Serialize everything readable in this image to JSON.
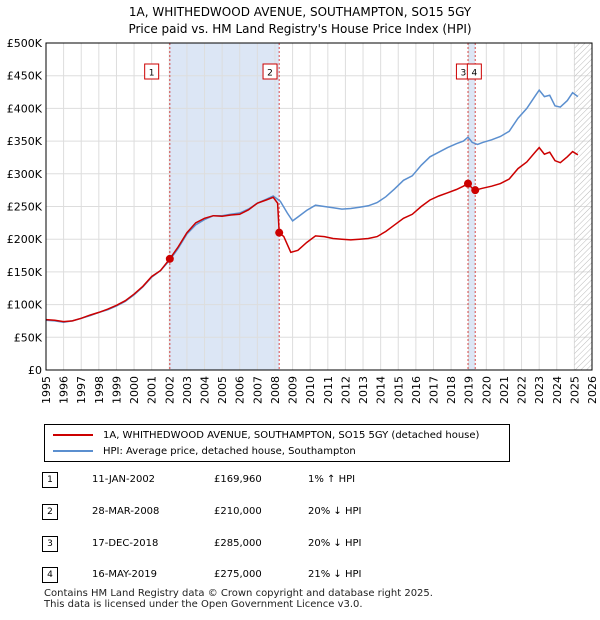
{
  "title": {
    "line1": "1A, WHITHEDWOOD AVENUE, SOUTHAMPTON, SO15 5GY",
    "line2": "Price paid vs. HM Land Registry's House Price Index (HPI)"
  },
  "colors": {
    "red": "#cc0000",
    "blue": "#5b8fcf",
    "shade": "#dce6f5",
    "grid": "#dddddd"
  },
  "chart_data": {
    "type": "line",
    "xlim": [
      1995,
      2026
    ],
    "ylim": [
      0,
      500000
    ],
    "x_ticks": [
      "1995",
      "1996",
      "1997",
      "1998",
      "1999",
      "2000",
      "2001",
      "2002",
      "2003",
      "2004",
      "2005",
      "2006",
      "2007",
      "2008",
      "2009",
      "2010",
      "2011",
      "2012",
      "2013",
      "2014",
      "2015",
      "2016",
      "2017",
      "2018",
      "2019",
      "2020",
      "2021",
      "2022",
      "2023",
      "2024",
      "2025",
      "2026"
    ],
    "y_ticks": [
      {
        "value": 0,
        "label": "£0"
      },
      {
        "value": 50000,
        "label": "£50K"
      },
      {
        "value": 100000,
        "label": "£100K"
      },
      {
        "value": 150000,
        "label": "£150K"
      },
      {
        "value": 200000,
        "label": "£200K"
      },
      {
        "value": 250000,
        "label": "£250K"
      },
      {
        "value": 300000,
        "label": "£300K"
      },
      {
        "value": 350000,
        "label": "£350K"
      },
      {
        "value": 400000,
        "label": "£400K"
      },
      {
        "value": 450000,
        "label": "£450K"
      },
      {
        "value": 500000,
        "label": "£500K"
      }
    ],
    "shaded_periods": [
      [
        2002.03,
        2008.24
      ],
      [
        2018.96,
        2019.37
      ]
    ],
    "future_hatch_from": 2025.0,
    "series": [
      {
        "name": "1A, WHITHEDWOOD AVENUE, SOUTHAMPTON, SO15 5GY (detached house)",
        "color": "#cc0000",
        "points": [
          [
            1995.0,
            77000
          ],
          [
            1995.5,
            76000
          ],
          [
            1996.0,
            74000
          ],
          [
            1996.5,
            75000
          ],
          [
            1997.0,
            79000
          ],
          [
            1997.5,
            84000
          ],
          [
            1998.0,
            88000
          ],
          [
            1998.5,
            93000
          ],
          [
            1999.0,
            99000
          ],
          [
            1999.5,
            106000
          ],
          [
            2000.0,
            116000
          ],
          [
            2000.5,
            128000
          ],
          [
            2001.0,
            143000
          ],
          [
            2001.5,
            152000
          ],
          [
            2002.03,
            169960
          ],
          [
            2002.5,
            188000
          ],
          [
            2003.0,
            210000
          ],
          [
            2003.5,
            225000
          ],
          [
            2004.0,
            232000
          ],
          [
            2004.5,
            236000
          ],
          [
            2005.0,
            235000
          ],
          [
            2005.5,
            237000
          ],
          [
            2006.0,
            238000
          ],
          [
            2006.5,
            245000
          ],
          [
            2007.0,
            255000
          ],
          [
            2007.5,
            260000
          ],
          [
            2007.9,
            264000
          ],
          [
            2008.15,
            255000
          ],
          [
            2008.24,
            210000
          ],
          [
            2008.5,
            204000
          ],
          [
            2008.9,
            180000
          ],
          [
            2009.3,
            183000
          ],
          [
            2009.8,
            195000
          ],
          [
            2010.3,
            205000
          ],
          [
            2010.8,
            204000
          ],
          [
            2011.3,
            201000
          ],
          [
            2011.8,
            200000
          ],
          [
            2012.3,
            199000
          ],
          [
            2012.8,
            200000
          ],
          [
            2013.3,
            201000
          ],
          [
            2013.8,
            204000
          ],
          [
            2014.3,
            212000
          ],
          [
            2014.8,
            222000
          ],
          [
            2015.3,
            232000
          ],
          [
            2015.8,
            238000
          ],
          [
            2016.3,
            250000
          ],
          [
            2016.8,
            260000
          ],
          [
            2017.3,
            266000
          ],
          [
            2017.8,
            271000
          ],
          [
            2018.3,
            276000
          ],
          [
            2018.7,
            281000
          ],
          [
            2018.96,
            285000
          ],
          [
            2019.2,
            278000
          ],
          [
            2019.37,
            275000
          ],
          [
            2019.8,
            278000
          ],
          [
            2020.3,
            281000
          ],
          [
            2020.8,
            285000
          ],
          [
            2021.3,
            292000
          ],
          [
            2021.8,
            308000
          ],
          [
            2022.3,
            318000
          ],
          [
            2022.8,
            334000
          ],
          [
            2023.0,
            340000
          ],
          [
            2023.3,
            330000
          ],
          [
            2023.6,
            333000
          ],
          [
            2023.9,
            320000
          ],
          [
            2024.2,
            317000
          ],
          [
            2024.6,
            326000
          ],
          [
            2024.9,
            334000
          ],
          [
            2025.2,
            329000
          ]
        ]
      },
      {
        "name": "HPI: Average price, detached house, Southampton",
        "color": "#5b8fcf",
        "points": [
          [
            1995.0,
            76000
          ],
          [
            1995.5,
            75000
          ],
          [
            1996.0,
            73000
          ],
          [
            1996.5,
            75000
          ],
          [
            1997.0,
            79000
          ],
          [
            1997.5,
            83000
          ],
          [
            1998.0,
            88000
          ],
          [
            1998.5,
            92000
          ],
          [
            1999.0,
            98000
          ],
          [
            1999.5,
            105000
          ],
          [
            2000.0,
            115000
          ],
          [
            2000.5,
            127000
          ],
          [
            2001.0,
            142000
          ],
          [
            2001.5,
            152000
          ],
          [
            2002.03,
            168000
          ],
          [
            2002.5,
            186000
          ],
          [
            2003.0,
            208000
          ],
          [
            2003.5,
            222000
          ],
          [
            2004.0,
            230000
          ],
          [
            2004.5,
            236000
          ],
          [
            2005.0,
            236000
          ],
          [
            2005.5,
            238000
          ],
          [
            2006.0,
            240000
          ],
          [
            2006.5,
            246000
          ],
          [
            2007.0,
            255000
          ],
          [
            2007.5,
            261000
          ],
          [
            2007.9,
            266000
          ],
          [
            2008.3,
            258000
          ],
          [
            2008.7,
            240000
          ],
          [
            2009.0,
            228000
          ],
          [
            2009.3,
            234000
          ],
          [
            2009.8,
            244000
          ],
          [
            2010.3,
            252000
          ],
          [
            2010.8,
            250000
          ],
          [
            2011.3,
            248000
          ],
          [
            2011.8,
            246000
          ],
          [
            2012.3,
            247000
          ],
          [
            2012.8,
            249000
          ],
          [
            2013.3,
            251000
          ],
          [
            2013.8,
            256000
          ],
          [
            2014.3,
            265000
          ],
          [
            2014.8,
            277000
          ],
          [
            2015.3,
            290000
          ],
          [
            2015.8,
            297000
          ],
          [
            2016.3,
            313000
          ],
          [
            2016.8,
            326000
          ],
          [
            2017.3,
            333000
          ],
          [
            2017.8,
            340000
          ],
          [
            2018.3,
            346000
          ],
          [
            2018.7,
            350000
          ],
          [
            2018.96,
            356000
          ],
          [
            2019.2,
            348000
          ],
          [
            2019.5,
            345000
          ],
          [
            2019.8,
            348000
          ],
          [
            2020.3,
            352000
          ],
          [
            2020.8,
            357000
          ],
          [
            2021.3,
            365000
          ],
          [
            2021.8,
            385000
          ],
          [
            2022.3,
            400000
          ],
          [
            2022.8,
            420000
          ],
          [
            2023.0,
            428000
          ],
          [
            2023.3,
            418000
          ],
          [
            2023.6,
            420000
          ],
          [
            2023.9,
            404000
          ],
          [
            2024.2,
            402000
          ],
          [
            2024.6,
            412000
          ],
          [
            2024.9,
            424000
          ],
          [
            2025.2,
            418000
          ]
        ]
      }
    ],
    "markers": [
      {
        "label": "1",
        "x": 2002.03,
        "y": 169960,
        "box_x": 2001.0
      },
      {
        "label": "2",
        "x": 2008.24,
        "y": 210000,
        "box_x": 2007.72
      },
      {
        "label": "3",
        "x": 2018.96,
        "y": 285000,
        "box_x": 2018.7
      },
      {
        "label": "4",
        "x": 2019.37,
        "y": 275000,
        "box_x": 2019.32
      }
    ]
  },
  "legend": {
    "red_label": "1A, WHITHEDWOOD AVENUE, SOUTHAMPTON, SO15 5GY (detached house)",
    "blue_label": "HPI: Average price, detached house, Southampton"
  },
  "transactions": [
    {
      "index": "1",
      "date": "11-JAN-2002",
      "price": "£169,960",
      "hpi": "1% ↑ HPI"
    },
    {
      "index": "2",
      "date": "28-MAR-2008",
      "price": "£210,000",
      "hpi": "20% ↓ HPI"
    },
    {
      "index": "3",
      "date": "17-DEC-2018",
      "price": "£285,000",
      "hpi": "20% ↓ HPI"
    },
    {
      "index": "4",
      "date": "16-MAY-2019",
      "price": "£275,000",
      "hpi": "21% ↓ HPI"
    }
  ],
  "footer": {
    "line1": "Contains HM Land Registry data © Crown copyright and database right 2025.",
    "line2": "This data is licensed under the Open Government Licence v3.0."
  }
}
